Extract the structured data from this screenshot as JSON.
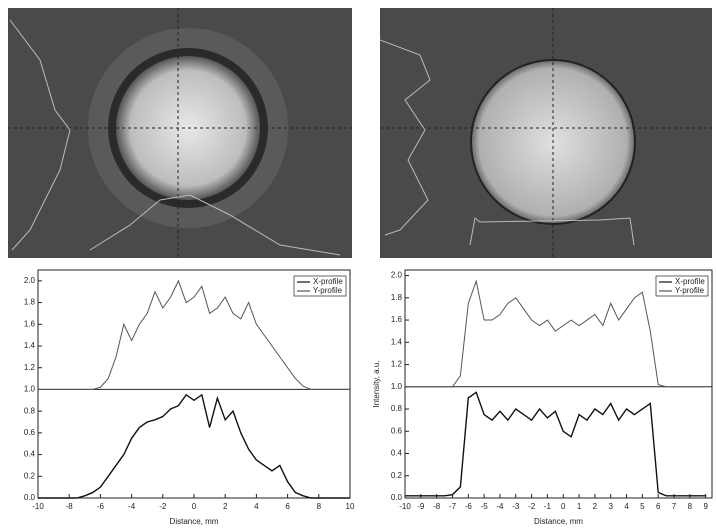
{
  "chart_data": [
    {
      "type": "line",
      "x": [
        -10,
        -9.5,
        -9,
        -8.5,
        -8,
        -7.5,
        -7,
        -6.5,
        -6,
        -5.5,
        -5,
        -4.5,
        -4,
        -3.5,
        -3,
        -2.5,
        -2,
        -1.5,
        -1,
        -0.5,
        0,
        0.5,
        1,
        1.5,
        2,
        2.5,
        3,
        3.5,
        4,
        4.5,
        5,
        5.5,
        6,
        6.5,
        7,
        7.5,
        8,
        8.5,
        9,
        9.5,
        10
      ],
      "series": [
        {
          "name": "X-profile",
          "color": "#111111",
          "values": [
            0,
            0,
            0,
            0,
            0,
            0,
            0.02,
            0.05,
            0.1,
            0.2,
            0.3,
            0.4,
            0.55,
            0.65,
            0.7,
            0.72,
            0.75,
            0.82,
            0.85,
            0.95,
            0.9,
            0.95,
            0.65,
            0.92,
            0.72,
            0.8,
            0.6,
            0.45,
            0.35,
            0.3,
            0.25,
            0.3,
            0.15,
            0.05,
            0.02,
            0,
            0,
            0,
            0,
            0,
            0
          ]
        },
        {
          "name": "Y-profile",
          "color": "#555555",
          "values": [
            1,
            1,
            1,
            1,
            1,
            1,
            1,
            1,
            1.02,
            1.1,
            1.3,
            1.6,
            1.45,
            1.6,
            1.7,
            1.9,
            1.75,
            1.85,
            2.0,
            1.8,
            1.85,
            1.95,
            1.7,
            1.75,
            1.85,
            1.7,
            1.65,
            1.8,
            1.6,
            1.5,
            1.4,
            1.3,
            1.2,
            1.1,
            1.03,
            1,
            1,
            1,
            1,
            1,
            1
          ]
        }
      ],
      "xlim": [
        -10,
        10
      ],
      "xticks": [
        -10,
        -8,
        -6,
        -4,
        -2,
        0,
        2,
        4,
        6,
        8,
        10
      ],
      "ylim": [
        0,
        2.1
      ],
      "yticks": [
        {
          "value": 0,
          "label": "0.0"
        },
        {
          "value": 0.2,
          "label": "0.2"
        },
        {
          "value": 0.4,
          "label": "0.4"
        },
        {
          "value": 0.6,
          "label": "0.6"
        },
        {
          "value": 0.8,
          "label": "0.8"
        },
        {
          "value": 1,
          "label": "1.0"
        },
        {
          "value": 1.2,
          "label": "1.2"
        },
        {
          "value": 1.4,
          "label": "1.4"
        },
        {
          "value": 1.6,
          "label": "1.6"
        },
        {
          "value": 1.8,
          "label": "1.8"
        },
        {
          "value": 2,
          "label": "2.0"
        }
      ],
      "xlabel": "Distance, mm",
      "legend": "upper right"
    },
    {
      "type": "line",
      "x": [
        -10,
        -9.5,
        -9,
        -8.5,
        -8,
        -7.5,
        -7,
        -6.5,
        -6,
        -5.5,
        -5,
        -4.5,
        -4,
        -3.5,
        -3,
        -2.5,
        -2,
        -1.5,
        -1,
        -0.5,
        0,
        0.5,
        1,
        1.5,
        2,
        2.5,
        3,
        3.5,
        4,
        4.5,
        5,
        5.5,
        6,
        6.5,
        7,
        7.5,
        8,
        8.5,
        9
      ],
      "series": [
        {
          "name": "X-profile",
          "color": "#111111",
          "values": [
            0.02,
            0.02,
            0.02,
            0.02,
            0.02,
            0.02,
            0.03,
            0.1,
            0.9,
            0.95,
            0.75,
            0.7,
            0.78,
            0.7,
            0.8,
            0.75,
            0.7,
            0.8,
            0.72,
            0.78,
            0.6,
            0.55,
            0.75,
            0.7,
            0.8,
            0.75,
            0.85,
            0.7,
            0.8,
            0.75,
            0.8,
            0.85,
            0.05,
            0.02,
            0.02,
            0.02,
            0.02,
            0.02,
            0.02
          ]
        },
        {
          "name": "Y-profile",
          "color": "#555555",
          "values": [
            1,
            1,
            1,
            1,
            1,
            1,
            1,
            1.1,
            1.75,
            1.95,
            1.6,
            1.6,
            1.65,
            1.75,
            1.8,
            1.7,
            1.6,
            1.55,
            1.6,
            1.5,
            1.55,
            1.6,
            1.55,
            1.6,
            1.65,
            1.55,
            1.75,
            1.6,
            1.7,
            1.8,
            1.85,
            1.5,
            1.02,
            1,
            1,
            1,
            1,
            1,
            1
          ]
        }
      ],
      "xlim": [
        -10,
        9.4
      ],
      "xticks": [
        -10,
        -9,
        -8,
        -7,
        -6,
        -5,
        -4,
        -3,
        -2,
        -1,
        0,
        1,
        2,
        3,
        4,
        5,
        6,
        7,
        8,
        9
      ],
      "ylim": [
        0,
        2.05
      ],
      "yticks": [
        {
          "value": 0,
          "label": "0.0"
        },
        {
          "value": 0.2,
          "label": "0.2"
        },
        {
          "value": 0.4,
          "label": "0.4"
        },
        {
          "value": 0.6,
          "label": "0.6"
        },
        {
          "value": 0.8,
          "label": "0.8"
        },
        {
          "value": 1,
          "label": "1.0"
        },
        {
          "value": 1.2,
          "label": "1.2"
        },
        {
          "value": 1.4,
          "label": "1.4"
        },
        {
          "value": 1.6,
          "label": "1.6"
        },
        {
          "value": 1.8,
          "label": "1.8"
        },
        {
          "value": 2,
          "label": "2.0"
        }
      ],
      "xlabel": "Distance, mm",
      "ylabel": "Intensity, a.u.",
      "legend": "upper right"
    }
  ]
}
